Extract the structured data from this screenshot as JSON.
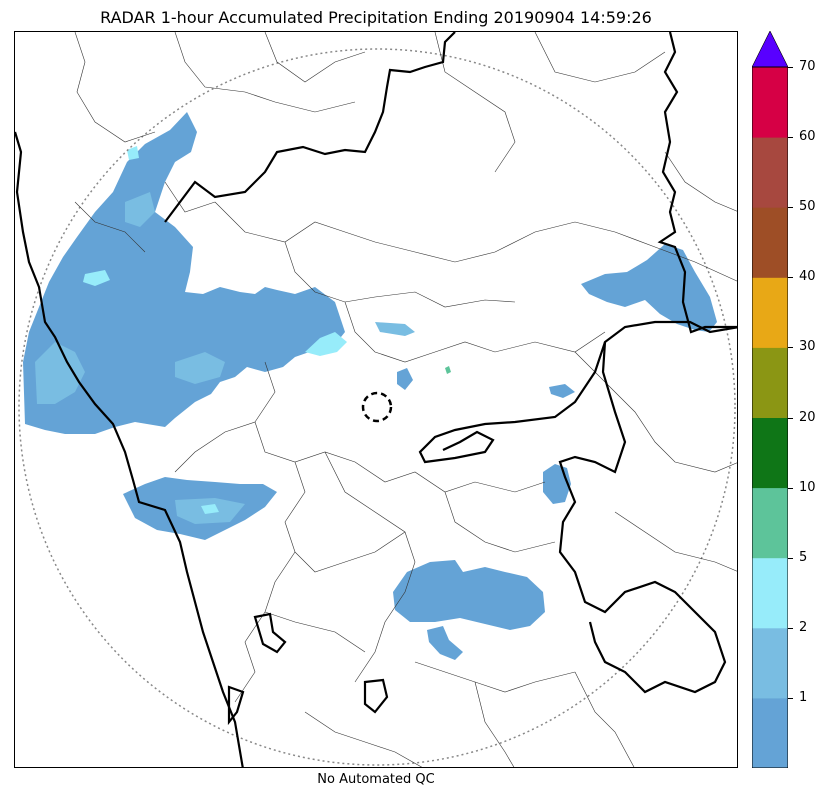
{
  "title": "RADAR 1-hour Accumulated Precipitation Ending 20190904 14:59:26",
  "footer": "No Automated QC",
  "colorbar": {
    "levels": [
      {
        "label": "",
        "color": "#64a3d6"
      },
      {
        "label": "1",
        "color": "#79bde2"
      },
      {
        "label": "2",
        "color": "#97ecfa"
      },
      {
        "label": "5",
        "color": "#5dc49a"
      },
      {
        "label": "10",
        "color": "#0f7617"
      },
      {
        "label": "20",
        "color": "#8b9614"
      },
      {
        "label": "30",
        "color": "#e8a816"
      },
      {
        "label": "40",
        "color": "#9e4e26"
      },
      {
        "label": "50",
        "color": "#a7483f"
      },
      {
        "label": "60",
        "color": "#d60045"
      },
      {
        "label": "70",
        "color": "#5800ff"
      }
    ],
    "tick_labels": [
      "1",
      "2",
      "5",
      "10",
      "20",
      "30",
      "40",
      "50",
      "60",
      "70"
    ],
    "extend_color": "#5800ff"
  },
  "map_colors": {
    "rain_light": "#64a3d6",
    "rain_mid": "#79bde2",
    "rain_high": "#97ecfa",
    "rain_10": "#5dc49a",
    "boundary": "#000000",
    "district": "#333333",
    "range_ring": "#888888"
  }
}
